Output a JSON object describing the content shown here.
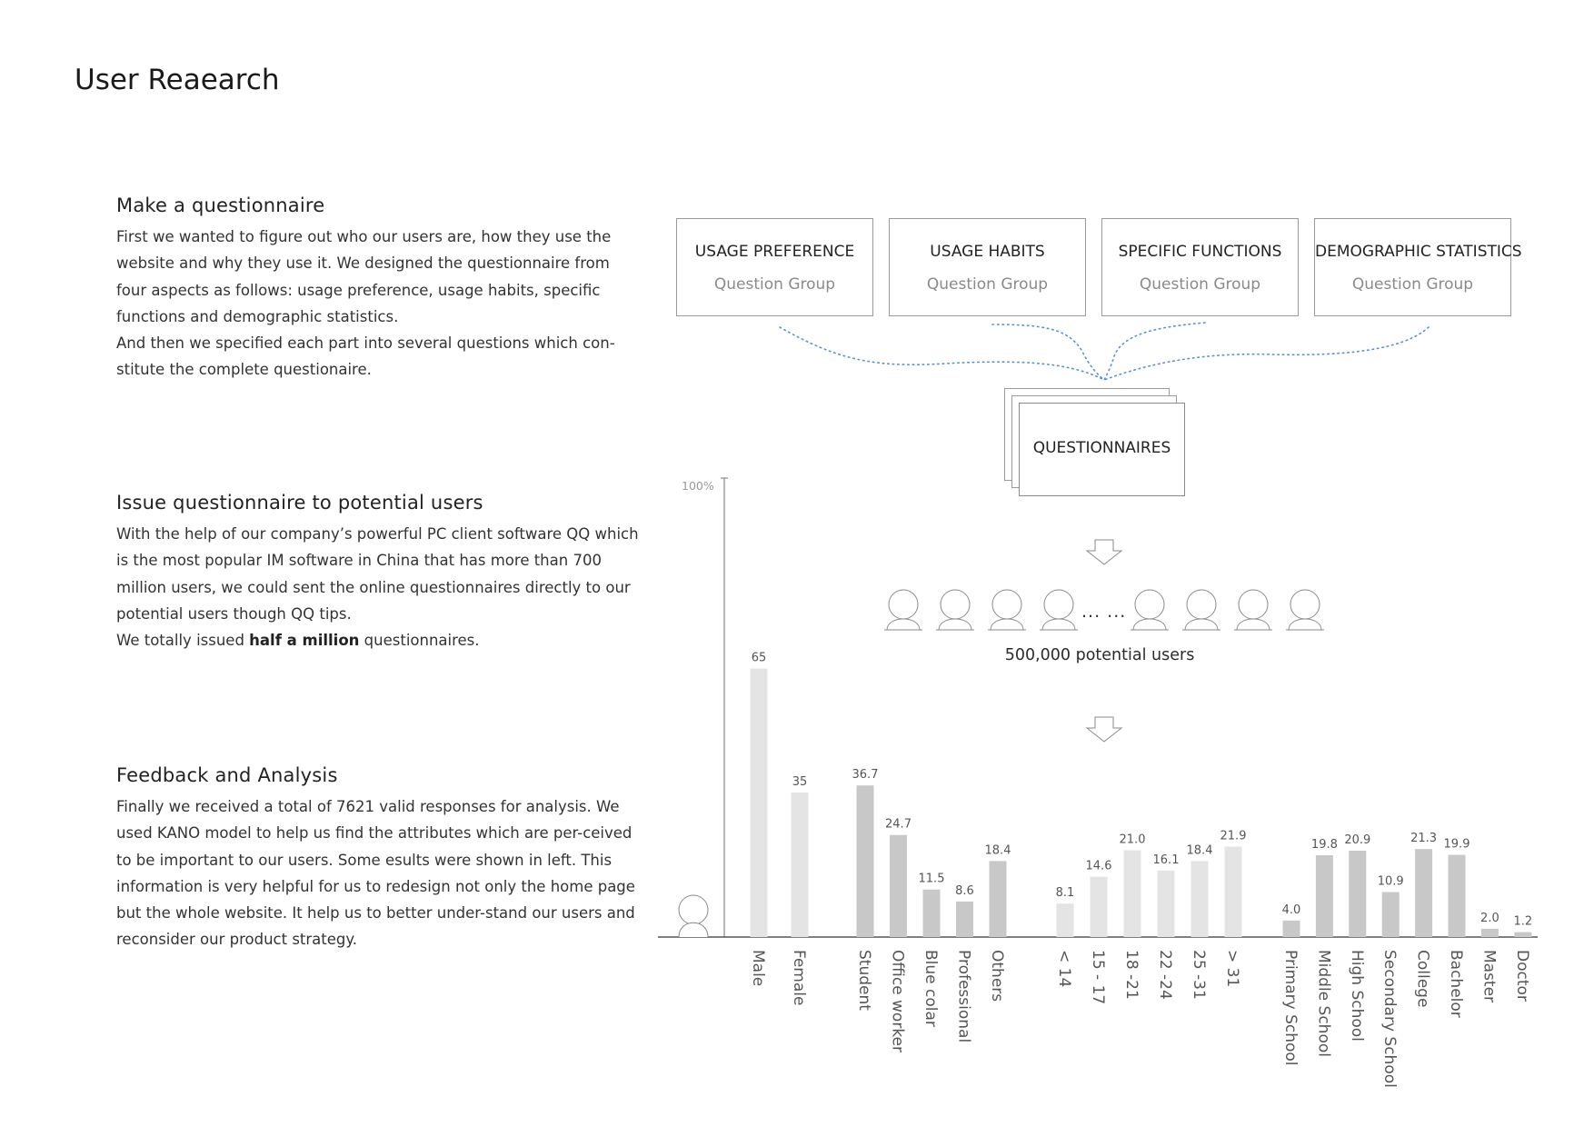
{
  "page_title": "User Reaearch",
  "sections": [
    {
      "heading": "Make a questionnaire",
      "paragraphs": [
        "First we wanted to figure out who our users are, how they use the website and why they use it. We designed the questionnaire from four aspects as follows: usage preference, usage habits, specific functions and demographic statistics.",
        "And then we specified each part into several questions which con-stitute the complete questionaire."
      ]
    },
    {
      "heading": "Issue questionnaire to potential users",
      "paragraphs": [
        "With the help of our company’s powerful PC client software QQ which is the most popular IM software in China that has more than 700 million users, we could sent the online questionnaires directly to our potential users though QQ tips."
      ],
      "last_line": {
        "before": "We totally issued ",
        "bold": "half a million",
        "after": " questionnaires."
      }
    },
    {
      "heading": "Feedback and Analysis",
      "paragraphs": [
        "Finally we received a total of 7621 valid responses for analysis. We used KANO model to help us find the attributes which are per-ceived to be important to our users. Some esults were shown in left. This information is very helpful for us to redesign not only the home page but the whole website. It help us to better under-stand our users and reconsider our product strategy."
      ]
    }
  ],
  "question_groups": [
    {
      "title": "USAGE PREFERENCE",
      "subtitle": "Question Group"
    },
    {
      "title": "USAGE HABITS",
      "subtitle": "Question Group"
    },
    {
      "title": "SPECIFIC FUNCTIONS",
      "subtitle": "Question Group"
    },
    {
      "title": "DEMOGRAPHIC STATISTICS",
      "subtitle": "Question Group"
    }
  ],
  "questionnaires_label": "QUESTIONNAIRES",
  "users": {
    "ellipsis": "... ...",
    "label": "500,000 potential users",
    "icon": "user-icon"
  },
  "colors": {
    "connector": "#5b8fd6",
    "bar_light": "#e4e4e4",
    "bar_dark": "#c8c8c8",
    "outline": "#9a9a9a"
  },
  "chart_data": {
    "type": "bar",
    "ymax_label": "100%",
    "ylim": [
      0,
      100
    ],
    "groups": [
      {
        "name": "gender",
        "shade": "light",
        "categories": [
          "Male",
          "Female"
        ],
        "values": [
          65,
          35
        ],
        "labels": [
          "65",
          "35"
        ]
      },
      {
        "name": "occupation",
        "shade": "dark",
        "categories": [
          "Student",
          "Office worker",
          "Blue colar",
          "Professional",
          "Others"
        ],
        "values": [
          36.7,
          24.7,
          11.5,
          8.6,
          18.4
        ],
        "labels": [
          "36.7",
          "24.7",
          "11.5",
          "8.6",
          "18.4"
        ]
      },
      {
        "name": "age",
        "shade": "light",
        "categories": [
          "< 14",
          "15 - 17",
          "18 -21",
          "22 -24",
          "25 -31",
          "> 31"
        ],
        "values": [
          8.1,
          14.6,
          21.0,
          16.1,
          18.4,
          21.9
        ],
        "labels": [
          "8.1",
          "14.6",
          "21.0",
          "16.1",
          "18.4",
          "21.9"
        ]
      },
      {
        "name": "education",
        "shade": "dark",
        "categories": [
          "Primary School",
          "Middle School",
          "High School",
          "Secondary School",
          "College",
          "Bachelor",
          "Master",
          "Doctor"
        ],
        "values": [
          4.0,
          19.8,
          20.9,
          10.9,
          21.3,
          19.9,
          2.0,
          1.2
        ],
        "labels": [
          "4.0",
          "19.8",
          "20.9",
          "10.9",
          "21.3",
          "19.9",
          "2.0",
          "1.2"
        ]
      }
    ]
  }
}
